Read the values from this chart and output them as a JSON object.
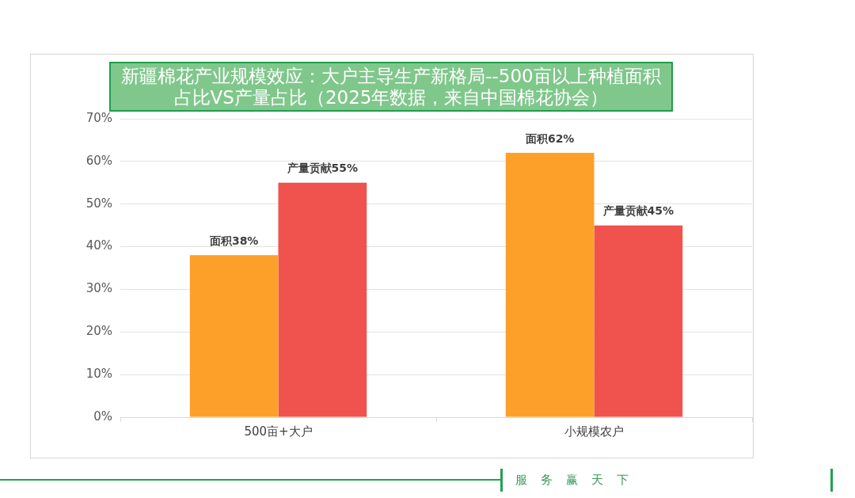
{
  "chart_data": {
    "type": "bar",
    "title": "新疆棉花产业规模效应：大户主导生产新格局--500亩以上种植面积占比VS产量占比（2025年数据，来自中国棉花协会）",
    "categories": [
      "500亩+大户",
      "小规模农户"
    ],
    "series": [
      {
        "color": "#fda02a",
        "values": [
          38,
          62
        ],
        "value_labels": [
          "面积38%",
          "面积62%"
        ]
      },
      {
        "color": "#f0524d",
        "values": [
          55,
          45
        ],
        "value_labels": [
          "产量贡献55%",
          "产量贡献45%"
        ]
      }
    ],
    "ylim": [
      0,
      70
    ],
    "yticks": [
      {
        "value": 0,
        "label": "0%"
      },
      {
        "value": 10,
        "label": "10%"
      },
      {
        "value": 20,
        "label": "20%"
      },
      {
        "value": 30,
        "label": "30%"
      },
      {
        "value": 40,
        "label": "40%"
      },
      {
        "value": 50,
        "label": "50%"
      },
      {
        "value": 60,
        "label": "60%"
      },
      {
        "value": 70,
        "label": "70%"
      }
    ],
    "grid": "y",
    "annotations": [
      "服务赢天下"
    ]
  }
}
